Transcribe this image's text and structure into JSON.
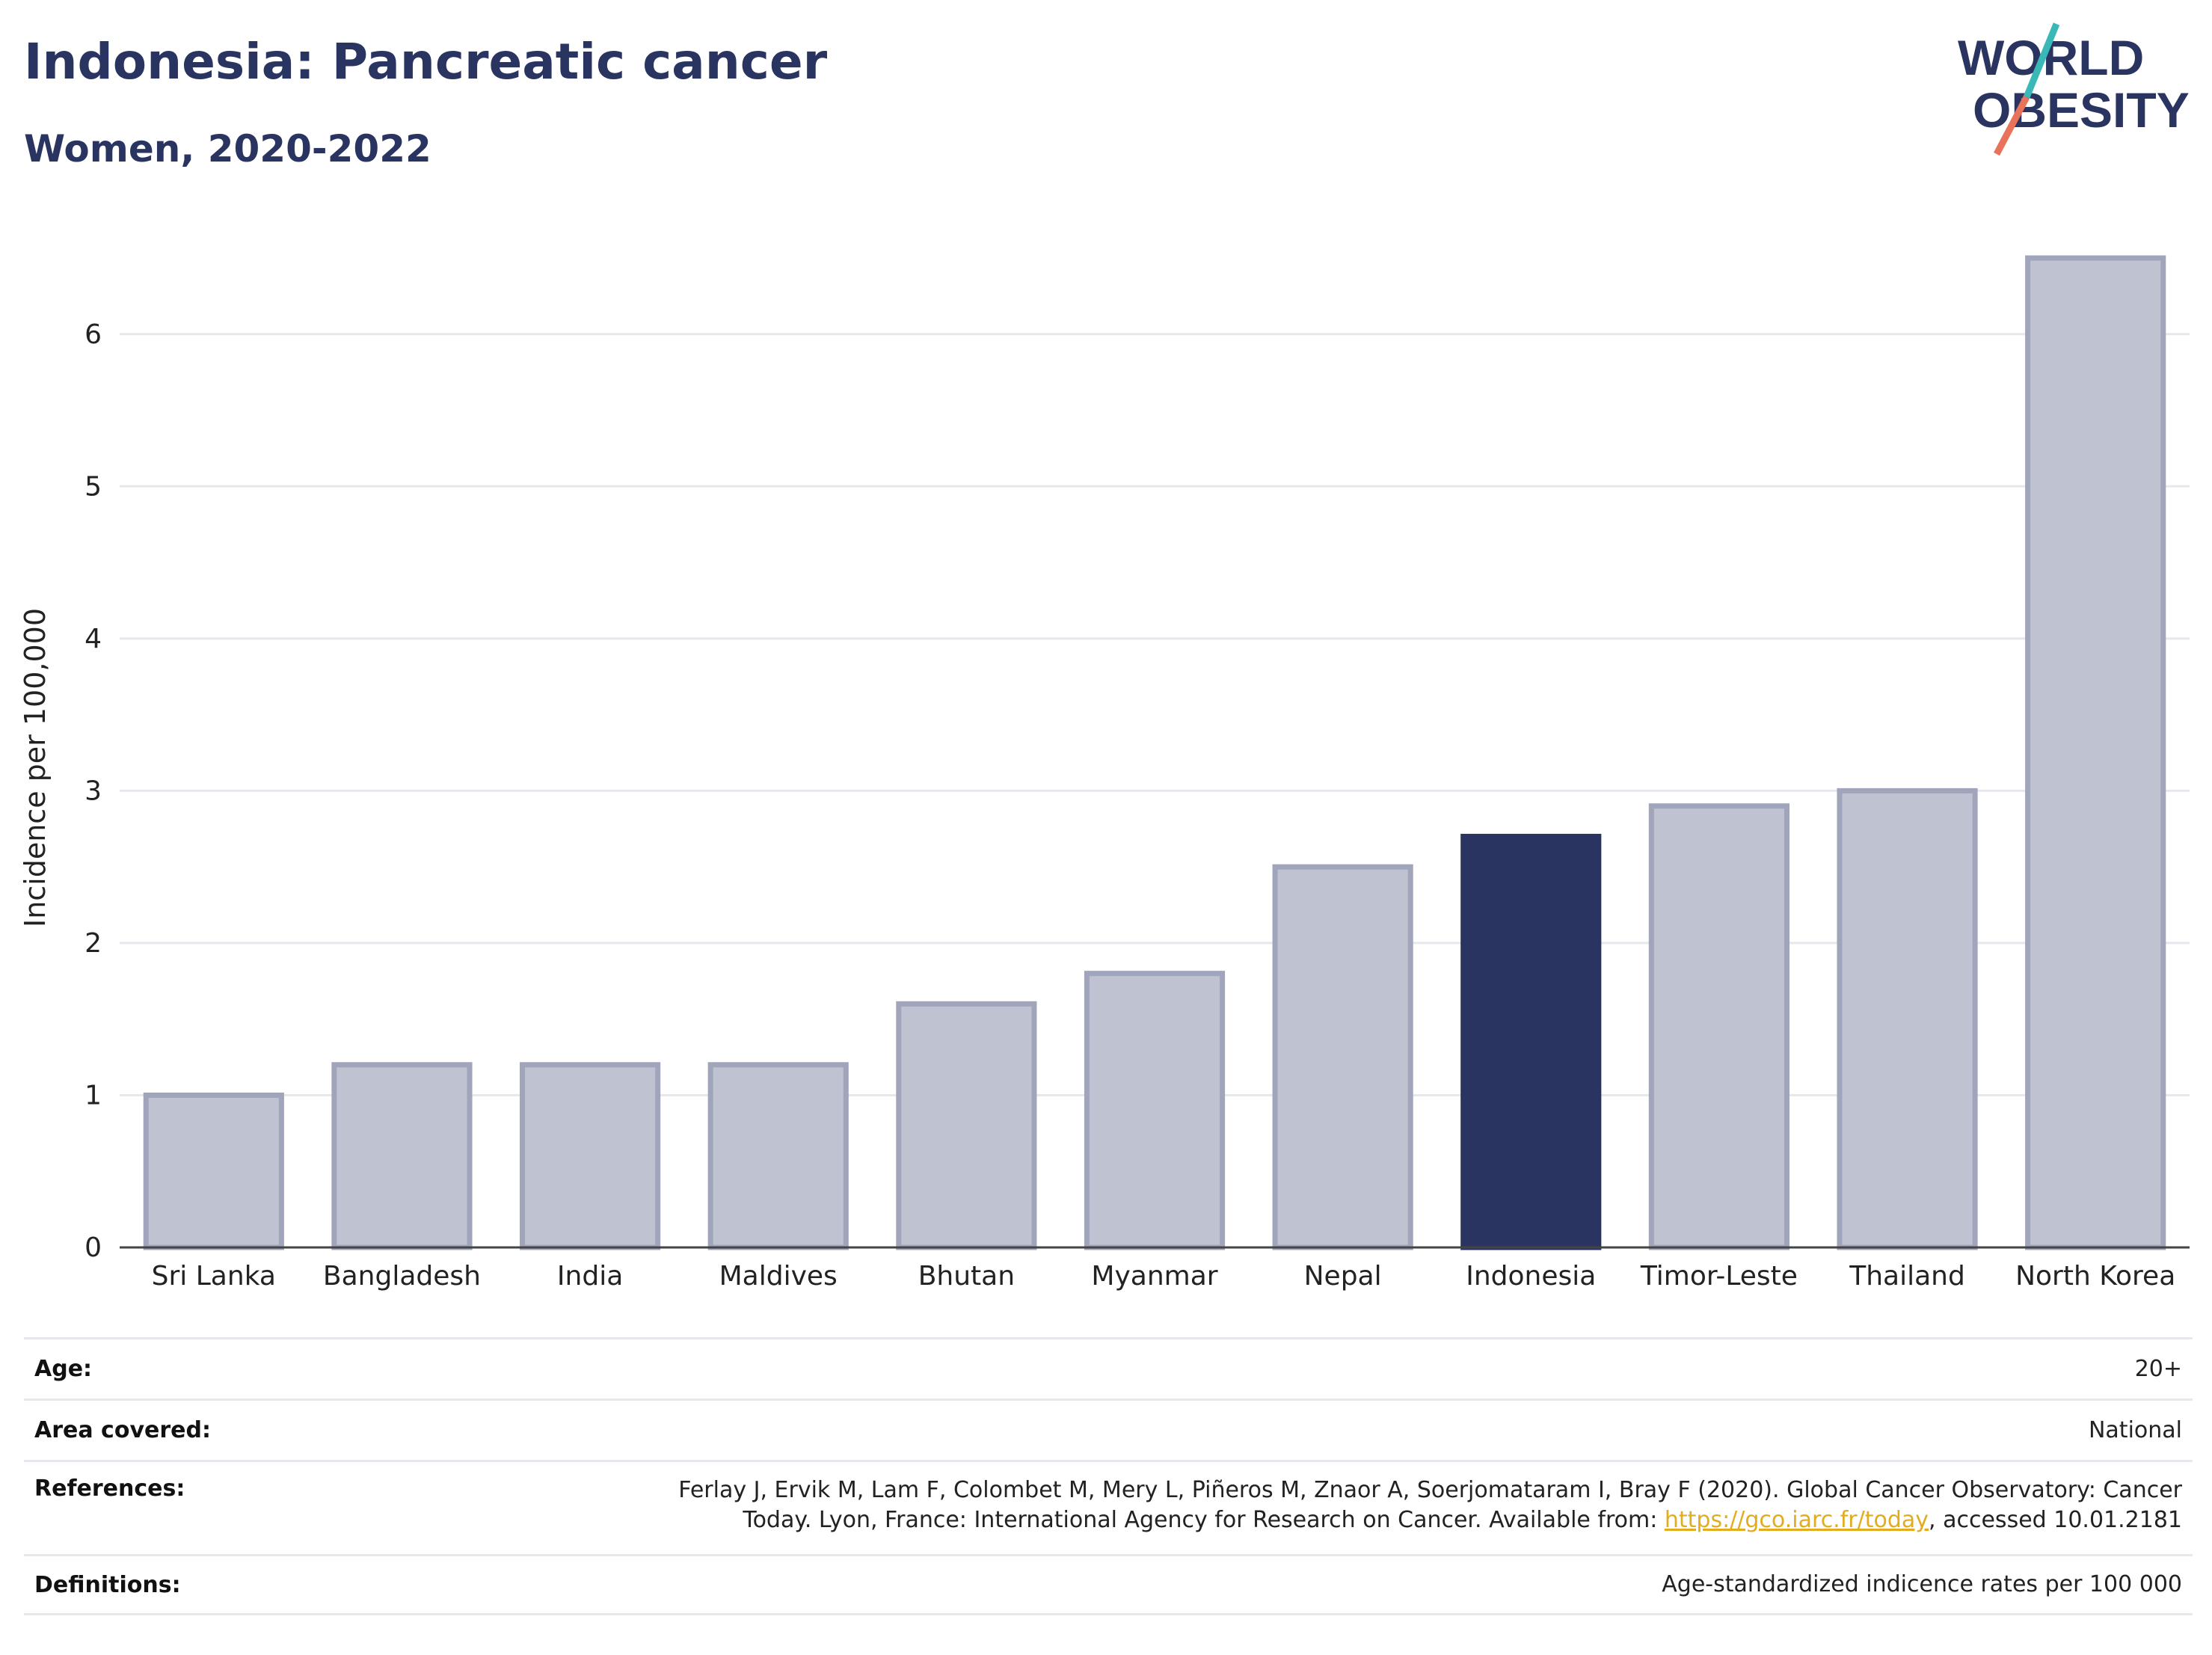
{
  "header": {
    "title": "Indonesia: Pancreatic cancer",
    "subtitle": "Women, 2020-2022"
  },
  "logo": {
    "line1": "WORLD",
    "line2": "OBESITY",
    "colors": {
      "text": "#2a3460",
      "slash_top": "#3ab8b8",
      "slash_bottom": "#e8735a"
    }
  },
  "chart_data": {
    "type": "bar",
    "categories": [
      "Sri Lanka",
      "Bangladesh",
      "India",
      "Maldives",
      "Bhutan",
      "Myanmar",
      "Nepal",
      "Indonesia",
      "Timor-Leste",
      "Thailand",
      "North Korea"
    ],
    "values": [
      1.0,
      1.2,
      1.2,
      1.2,
      1.6,
      1.8,
      2.5,
      2.7,
      2.9,
      3.0,
      6.5
    ],
    "highlight": "Indonesia",
    "title": "",
    "xlabel": "",
    "ylabel": "Incidence per 100,000",
    "ylim": [
      0,
      6.5
    ],
    "yticks": [
      0,
      1,
      2,
      3,
      4,
      5,
      6
    ],
    "grid": true,
    "colors": {
      "bar": "#bfc2d0",
      "bar_border": "#a0a5bb",
      "highlight": "#2a3460"
    }
  },
  "metadata": [
    {
      "label": "Age:",
      "value": "20+"
    },
    {
      "label": "Area covered:",
      "value": "National"
    },
    {
      "label": "References:",
      "value_line1": "Ferlay J, Ervik M, Lam F, Colombet M, Mery L, Piñeros M, Znaor A, Soerjomataram I, Bray F (2020). Global Cancer Observatory: Cancer",
      "value_line2_pre": "Today. Lyon, France: International Agency for Research on Cancer. Available from: ",
      "link": "https://gco.iarc.fr/today",
      "value_line2_post": ", accessed 10.01.2181"
    },
    {
      "label": "Definitions:",
      "value": "Age-standardized indicence rates per 100 000"
    }
  ]
}
